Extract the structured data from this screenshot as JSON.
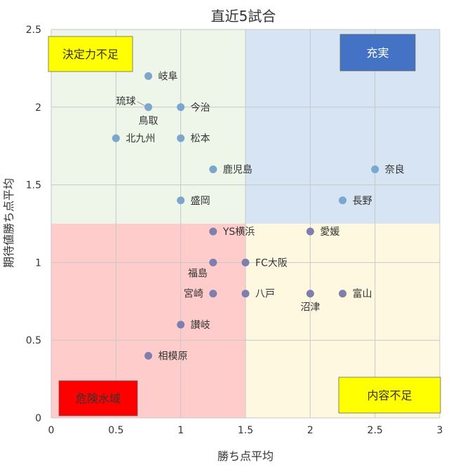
{
  "chart_data": {
    "type": "scatter",
    "title": "直近5試合",
    "xlabel": "勝ち点平均",
    "ylabel": "期待値勝ち点平均",
    "xlim": [
      0,
      3
    ],
    "ylim": [
      0,
      2.5
    ],
    "x_ticks": [
      "0",
      "0.5",
      "1",
      "1.5",
      "2",
      "2.5",
      "3"
    ],
    "y_ticks": [
      "0",
      "0.5",
      "1",
      "1.5",
      "2",
      "2.5"
    ],
    "grid": true,
    "quadrants": [
      {
        "name": "決定力不足",
        "x": [
          0,
          1.5
        ],
        "y": [
          1.25,
          2.5
        ],
        "fill": "#eef5e9",
        "label_bg": "#ffff00",
        "label_color": "#333333",
        "label_pos": "top-left"
      },
      {
        "name": "充実",
        "x": [
          1.5,
          3
        ],
        "y": [
          1.25,
          2.5
        ],
        "fill": "#d6e4f4",
        "label_bg": "#4472c4",
        "label_color": "#ffffff",
        "label_pos": "top-right"
      },
      {
        "name": "危険水域",
        "x": [
          0,
          1.5
        ],
        "y": [
          0,
          1.25
        ],
        "fill": "#ffcccc",
        "label_bg": "#ff0000",
        "label_color": "#333333",
        "label_pos": "bottom-left"
      },
      {
        "name": "内容不足",
        "x": [
          1.5,
          3
        ],
        "y": [
          0,
          1.25
        ],
        "fill": "#fff8e1",
        "label_bg": "#ffff00",
        "label_color": "#333333",
        "label_pos": "bottom-right"
      }
    ],
    "points": [
      {
        "label": "岐阜",
        "x": 0.75,
        "y": 2.2,
        "label_side": "right"
      },
      {
        "label": "琉球",
        "x": 0.75,
        "y": 2.0,
        "label_side": "upper-left"
      },
      {
        "label": "鳥取",
        "x": 0.75,
        "y": 2.0,
        "label_side": "below"
      },
      {
        "label": "今治",
        "x": 1.0,
        "y": 2.0,
        "label_side": "right"
      },
      {
        "label": "北九州",
        "x": 0.5,
        "y": 1.8,
        "label_side": "right"
      },
      {
        "label": "松本",
        "x": 1.0,
        "y": 1.8,
        "label_side": "right"
      },
      {
        "label": "鹿児島",
        "x": 1.25,
        "y": 1.6,
        "label_side": "right"
      },
      {
        "label": "奈良",
        "x": 2.5,
        "y": 1.6,
        "label_side": "right"
      },
      {
        "label": "長野",
        "x": 2.25,
        "y": 1.4,
        "label_side": "right"
      },
      {
        "label": "盛岡",
        "x": 1.0,
        "y": 1.4,
        "label_side": "right"
      },
      {
        "label": "YS横浜",
        "x": 1.25,
        "y": 1.2,
        "label_side": "right"
      },
      {
        "label": "愛媛",
        "x": 2.0,
        "y": 1.2,
        "label_side": "right"
      },
      {
        "label": "福島",
        "x": 1.25,
        "y": 1.0,
        "label_side": "lower-left"
      },
      {
        "label": "FC大阪",
        "x": 1.5,
        "y": 1.0,
        "label_side": "right"
      },
      {
        "label": "宮崎",
        "x": 1.25,
        "y": 0.8,
        "label_side": "left"
      },
      {
        "label": "八戸",
        "x": 1.5,
        "y": 0.8,
        "label_side": "right"
      },
      {
        "label": "沼津",
        "x": 2.0,
        "y": 0.8,
        "label_side": "below"
      },
      {
        "label": "富山",
        "x": 2.25,
        "y": 0.8,
        "label_side": "right"
      },
      {
        "label": "讃岐",
        "x": 1.0,
        "y": 0.6,
        "label_side": "right"
      },
      {
        "label": "相模原",
        "x": 0.75,
        "y": 0.4,
        "label_side": "right"
      }
    ],
    "point_color_upper": "#7ba7cc",
    "point_color_lower": "#7f7fad"
  }
}
